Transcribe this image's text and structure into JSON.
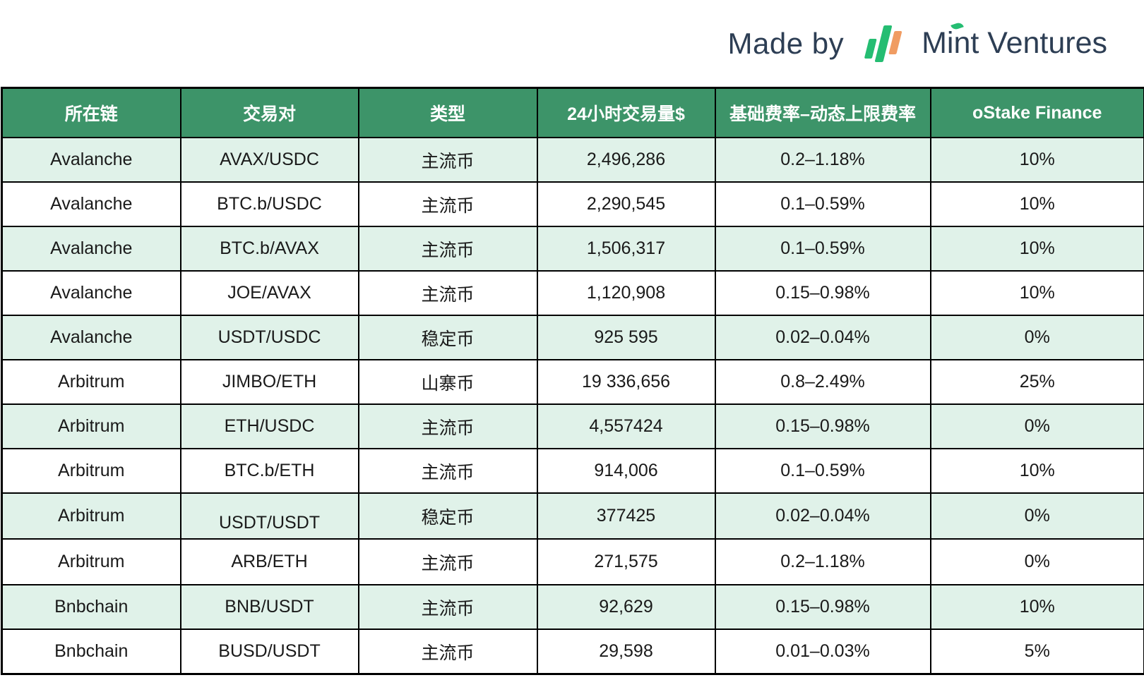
{
  "branding": {
    "made_by": "Made by",
    "brand": "Mint Ventures",
    "colors": {
      "text": "#2d3e54",
      "green": "#25bd72",
      "orange": "#f09c62"
    }
  },
  "table": {
    "columns": [
      "所在链",
      "交易对",
      "类型",
      "24小时交易量$",
      "基础费率–动态上限费率",
      "oStake Finance"
    ],
    "column_keys": [
      "chain",
      "pair",
      "type",
      "volume-24h",
      "fee-rate",
      "ostake-finance"
    ],
    "rows": [
      [
        "Avalanche",
        "AVAX/USDC",
        "主流币",
        "2,496,286",
        "0.2–1.18%",
        "10%"
      ],
      [
        "Avalanche",
        "BTC.b/USDC",
        "主流币",
        "2,290,545",
        "0.1–0.59%",
        "10%"
      ],
      [
        "Avalanche",
        "BTC.b/AVAX",
        "主流币",
        "1,506,317",
        "0.1–0.59%",
        "10%"
      ],
      [
        "Avalanche",
        "JOE/AVAX",
        "主流币",
        "1,120,908",
        "0.15–0.98%",
        "10%"
      ],
      [
        "Avalanche",
        "USDT/USDC",
        "稳定币",
        "925 595",
        "0.02–0.04%",
        "0%"
      ],
      [
        "Arbitrum",
        "JIMBO/ETH",
        "山寨币",
        "19 336,656",
        "0.8–2.49%",
        "25%"
      ],
      [
        "Arbitrum",
        "ETH/USDC",
        "主流币",
        "4,557424",
        "0.15–0.98%",
        "0%"
      ],
      [
        "Arbitrum",
        "BTC.b/ETH",
        "主流币",
        "914,006",
        "0.1–0.59%",
        "10%"
      ],
      [
        "Arbitrum",
        "USDT/USDT",
        "稳定币",
        "377425",
        "0.02–0.04%",
        "0%"
      ],
      [
        "Arbitrum",
        "ARB/ETH",
        "主流币",
        "271,575",
        "0.2–1.18%",
        "0%"
      ],
      [
        "Bnbchain",
        "BNB/USDT",
        "主流币",
        "92,629",
        "0.15–0.98%",
        "10%"
      ],
      [
        "Bnbchain",
        "BUSD/USDT",
        "主流币",
        "29,598",
        "0.01–0.03%",
        "5%"
      ]
    ],
    "colors": {
      "header_bg": "#3d9469",
      "header_text": "#ffffff",
      "row_alt_bg": "#e0f2e9",
      "border": "#000000"
    }
  }
}
